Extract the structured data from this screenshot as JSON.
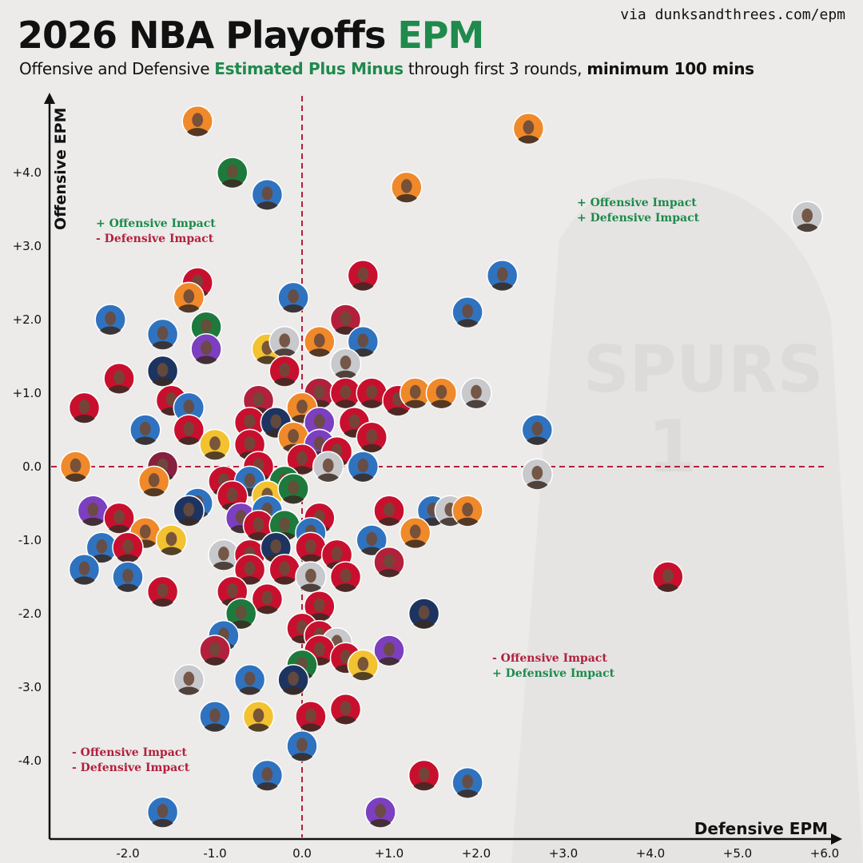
{
  "header": {
    "title_main": "2026 NBA Playoffs",
    "title_accent": "EPM",
    "source": "via dunksandthrees.com/epm",
    "subtitle_pre": "Offensive and Defensive",
    "subtitle_accent": "Estimated Plus Minus",
    "subtitle_mid": "through first 3 rounds,",
    "subtitle_strong": "minimum 100 mins"
  },
  "quadrants": {
    "top_left": {
      "line1": "+ Offensive Impact",
      "line2": "- Defensive Impact"
    },
    "top_right": {
      "line1": "+ Offensive Impact",
      "line2": "+ Defensive Impact"
    },
    "bottom_right": {
      "line1": "- Offensive Impact",
      "line2": "+ Defensive Impact"
    },
    "bottom_left": {
      "line1": "- Offensive Impact",
      "line2": "- Defensive Impact"
    }
  },
  "chart_data": {
    "type": "scatter",
    "xlabel": "Defensive EPM",
    "ylabel": "Offensive EPM",
    "xlim": [
      -2.9,
      6.2
    ],
    "ylim": [
      -5.2,
      5.0
    ],
    "x_ticks": [
      "-2.0",
      "-1.0",
      "0.0",
      "+1.0",
      "+2.0",
      "+3.0",
      "+4.0",
      "+5.0",
      "+6.0"
    ],
    "y_ticks": [
      "+4.0",
      "+3.0",
      "+2.0",
      "+1.0",
      "0.0",
      "-1.0",
      "-2.0",
      "-3.0",
      "-4.0"
    ],
    "x_tick_values": [
      -2,
      -1,
      0,
      1,
      2,
      3,
      4,
      5,
      6
    ],
    "y_tick_values": [
      4,
      3,
      2,
      1,
      0,
      -1,
      -2,
      -3,
      -4
    ],
    "reference_lines": {
      "x": 0,
      "y": 0,
      "style": "dashed"
    },
    "grid": false,
    "marker_style": "player headshot in team-color circle",
    "points": [
      {
        "x": -1.2,
        "y": 4.7,
        "c": "#f0892a"
      },
      {
        "x": 2.6,
        "y": 4.6,
        "c": "#f0892a"
      },
      {
        "x": 5.8,
        "y": 3.4,
        "c": "#c8c9cc"
      },
      {
        "x": -0.8,
        "y": 4.0,
        "c": "#1e7a3c"
      },
      {
        "x": -0.4,
        "y": 3.7,
        "c": "#2f73c0"
      },
      {
        "x": 1.2,
        "y": 3.8,
        "c": "#f0892a"
      },
      {
        "x": 2.3,
        "y": 2.6,
        "c": "#2f73c0"
      },
      {
        "x": 0.7,
        "y": 2.6,
        "c": "#c8102e"
      },
      {
        "x": -1.2,
        "y": 2.5,
        "c": "#c8102e"
      },
      {
        "x": -1.3,
        "y": 2.3,
        "c": "#f0892a"
      },
      {
        "x": -0.1,
        "y": 2.3,
        "c": "#2f73c0"
      },
      {
        "x": 1.9,
        "y": 2.1,
        "c": "#2f73c0"
      },
      {
        "x": -2.2,
        "y": 2.0,
        "c": "#2f73c0"
      },
      {
        "x": -1.1,
        "y": 1.9,
        "c": "#1e7a3c"
      },
      {
        "x": -1.6,
        "y": 1.8,
        "c": "#2f73c0"
      },
      {
        "x": 0.5,
        "y": 2.0,
        "c": "#b3203c"
      },
      {
        "x": 0.7,
        "y": 1.7,
        "c": "#2f73c0"
      },
      {
        "x": -1.1,
        "y": 1.6,
        "c": "#7c3fbf"
      },
      {
        "x": -0.4,
        "y": 1.6,
        "c": "#f2c230"
      },
      {
        "x": -0.2,
        "y": 1.7,
        "c": "#c8c9cc"
      },
      {
        "x": 0.2,
        "y": 1.7,
        "c": "#f0892a"
      },
      {
        "x": -0.2,
        "y": 1.3,
        "c": "#c8102e"
      },
      {
        "x": 0.5,
        "y": 1.4,
        "c": "#c8c9cc"
      },
      {
        "x": -1.6,
        "y": 1.3,
        "c": "#1d3461"
      },
      {
        "x": -2.1,
        "y": 1.2,
        "c": "#c8102e"
      },
      {
        "x": -2.5,
        "y": 0.8,
        "c": "#c8102e"
      },
      {
        "x": -1.5,
        "y": 0.9,
        "c": "#c8102e"
      },
      {
        "x": -0.5,
        "y": 0.9,
        "c": "#b3203c"
      },
      {
        "x": 0.2,
        "y": 1.0,
        "c": "#b3203c"
      },
      {
        "x": 0.5,
        "y": 1.0,
        "c": "#c8102e"
      },
      {
        "x": 0.8,
        "y": 1.0,
        "c": "#c8102e"
      },
      {
        "x": 1.1,
        "y": 0.9,
        "c": "#c8102e"
      },
      {
        "x": 1.3,
        "y": 1.0,
        "c": "#f0892a"
      },
      {
        "x": 1.6,
        "y": 1.0,
        "c": "#f0892a"
      },
      {
        "x": 2.0,
        "y": 1.0,
        "c": "#c8c9cc"
      },
      {
        "x": -1.3,
        "y": 0.8,
        "c": "#2f73c0"
      },
      {
        "x": -0.6,
        "y": 0.6,
        "c": "#c8102e"
      },
      {
        "x": 0.0,
        "y": 0.8,
        "c": "#f0892a"
      },
      {
        "x": 0.2,
        "y": 0.6,
        "c": "#7c3fbf"
      },
      {
        "x": 0.6,
        "y": 0.6,
        "c": "#c8102e"
      },
      {
        "x": -1.8,
        "y": 0.5,
        "c": "#2f73c0"
      },
      {
        "x": -1.3,
        "y": 0.5,
        "c": "#c8102e"
      },
      {
        "x": -0.3,
        "y": 0.6,
        "c": "#1d3461"
      },
      {
        "x": 0.8,
        "y": 0.4,
        "c": "#c8102e"
      },
      {
        "x": 2.7,
        "y": 0.5,
        "c": "#2f73c0"
      },
      {
        "x": -1.0,
        "y": 0.3,
        "c": "#f2c230"
      },
      {
        "x": -0.6,
        "y": 0.3,
        "c": "#c8102e"
      },
      {
        "x": -0.1,
        "y": 0.4,
        "c": "#f0892a"
      },
      {
        "x": 0.2,
        "y": 0.3,
        "c": "#7c3fbf"
      },
      {
        "x": 0.4,
        "y": 0.2,
        "c": "#c8102e"
      },
      {
        "x": -2.6,
        "y": 0.0,
        "c": "#f0892a"
      },
      {
        "x": -1.6,
        "y": 0.0,
        "c": "#86203f"
      },
      {
        "x": -0.5,
        "y": 0.0,
        "c": "#c8102e"
      },
      {
        "x": 0.0,
        "y": 0.1,
        "c": "#c8102e"
      },
      {
        "x": 0.3,
        "y": 0.0,
        "c": "#c8c9cc"
      },
      {
        "x": 0.7,
        "y": 0.0,
        "c": "#2f73c0"
      },
      {
        "x": 2.7,
        "y": -0.1,
        "c": "#c8c9cc"
      },
      {
        "x": -1.7,
        "y": -0.2,
        "c": "#f0892a"
      },
      {
        "x": -0.9,
        "y": -0.2,
        "c": "#c8102e"
      },
      {
        "x": -0.6,
        "y": -0.2,
        "c": "#2f73c0"
      },
      {
        "x": -0.2,
        "y": -0.2,
        "c": "#1e7a3c"
      },
      {
        "x": -1.2,
        "y": -0.5,
        "c": "#2f73c0"
      },
      {
        "x": -0.8,
        "y": -0.4,
        "c": "#c8102e"
      },
      {
        "x": -0.4,
        "y": -0.4,
        "c": "#f2c230"
      },
      {
        "x": -0.1,
        "y": -0.3,
        "c": "#1e7a3c"
      },
      {
        "x": -2.4,
        "y": -0.6,
        "c": "#7c3fbf"
      },
      {
        "x": -2.1,
        "y": -0.7,
        "c": "#c8102e"
      },
      {
        "x": -1.3,
        "y": -0.6,
        "c": "#1d3461"
      },
      {
        "x": -0.7,
        "y": -0.7,
        "c": "#7c3fbf"
      },
      {
        "x": -0.4,
        "y": -0.6,
        "c": "#2f73c0"
      },
      {
        "x": 0.2,
        "y": -0.7,
        "c": "#c8102e"
      },
      {
        "x": 1.0,
        "y": -0.6,
        "c": "#c8102e"
      },
      {
        "x": 1.5,
        "y": -0.6,
        "c": "#2f73c0"
      },
      {
        "x": 1.7,
        "y": -0.6,
        "c": "#c8c9cc"
      },
      {
        "x": 1.9,
        "y": -0.6,
        "c": "#f0892a"
      },
      {
        "x": -1.8,
        "y": -0.9,
        "c": "#f0892a"
      },
      {
        "x": -1.5,
        "y": -1.0,
        "c": "#f2c230"
      },
      {
        "x": -0.5,
        "y": -0.8,
        "c": "#c8102e"
      },
      {
        "x": -0.2,
        "y": -0.8,
        "c": "#1e7a3c"
      },
      {
        "x": 0.1,
        "y": -0.9,
        "c": "#2f73c0"
      },
      {
        "x": 1.3,
        "y": -0.9,
        "c": "#f0892a"
      },
      {
        "x": 0.8,
        "y": -1.0,
        "c": "#2f73c0"
      },
      {
        "x": -2.3,
        "y": -1.1,
        "c": "#2f73c0"
      },
      {
        "x": -2.0,
        "y": -1.1,
        "c": "#c8102e"
      },
      {
        "x": -0.9,
        "y": -1.2,
        "c": "#c8c9cc"
      },
      {
        "x": -0.6,
        "y": -1.2,
        "c": "#c8102e"
      },
      {
        "x": -0.3,
        "y": -1.1,
        "c": "#1d3461"
      },
      {
        "x": 0.1,
        "y": -1.1,
        "c": "#c8102e"
      },
      {
        "x": 0.4,
        "y": -1.2,
        "c": "#c8102e"
      },
      {
        "x": -2.5,
        "y": -1.4,
        "c": "#2f73c0"
      },
      {
        "x": -2.0,
        "y": -1.5,
        "c": "#2f73c0"
      },
      {
        "x": -0.6,
        "y": -1.4,
        "c": "#c8102e"
      },
      {
        "x": -0.2,
        "y": -1.4,
        "c": "#c8102e"
      },
      {
        "x": 0.1,
        "y": -1.5,
        "c": "#c8c9cc"
      },
      {
        "x": 0.5,
        "y": -1.5,
        "c": "#c8102e"
      },
      {
        "x": 1.0,
        "y": -1.3,
        "c": "#b3203c"
      },
      {
        "x": -1.6,
        "y": -1.7,
        "c": "#c8102e"
      },
      {
        "x": -0.8,
        "y": -1.7,
        "c": "#c8102e"
      },
      {
        "x": -0.4,
        "y": -1.8,
        "c": "#c8102e"
      },
      {
        "x": 0.2,
        "y": -1.9,
        "c": "#c8102e"
      },
      {
        "x": 4.2,
        "y": -1.5,
        "c": "#c8102e"
      },
      {
        "x": -0.7,
        "y": -2.0,
        "c": "#1e7a3c"
      },
      {
        "x": 1.4,
        "y": -2.0,
        "c": "#1d3461"
      },
      {
        "x": -0.9,
        "y": -2.3,
        "c": "#2f73c0"
      },
      {
        "x": 0.0,
        "y": -2.2,
        "c": "#c8102e"
      },
      {
        "x": 0.2,
        "y": -2.3,
        "c": "#c8102e"
      },
      {
        "x": -1.0,
        "y": -2.5,
        "c": "#b3203c"
      },
      {
        "x": 0.4,
        "y": -2.4,
        "c": "#c8c9cc"
      },
      {
        "x": 0.2,
        "y": -2.5,
        "c": "#c8102e"
      },
      {
        "x": 1.0,
        "y": -2.5,
        "c": "#7c3fbf"
      },
      {
        "x": 0.0,
        "y": -2.7,
        "c": "#1e7a3c"
      },
      {
        "x": 0.5,
        "y": -2.6,
        "c": "#c8102e"
      },
      {
        "x": 0.7,
        "y": -2.7,
        "c": "#f2c230"
      },
      {
        "x": -1.3,
        "y": -2.9,
        "c": "#c8c9cc"
      },
      {
        "x": -0.6,
        "y": -2.9,
        "c": "#2f73c0"
      },
      {
        "x": -0.1,
        "y": -2.9,
        "c": "#1d3461"
      },
      {
        "x": -1.0,
        "y": -3.4,
        "c": "#2f73c0"
      },
      {
        "x": -0.5,
        "y": -3.4,
        "c": "#f2c230"
      },
      {
        "x": 0.1,
        "y": -3.4,
        "c": "#c8102e"
      },
      {
        "x": 0.5,
        "y": -3.3,
        "c": "#c8102e"
      },
      {
        "x": 0.0,
        "y": -3.8,
        "c": "#2f73c0"
      },
      {
        "x": -0.4,
        "y": -4.2,
        "c": "#2f73c0"
      },
      {
        "x": 1.4,
        "y": -4.2,
        "c": "#c8102e"
      },
      {
        "x": 1.9,
        "y": -4.3,
        "c": "#2f73c0"
      },
      {
        "x": -1.6,
        "y": -4.7,
        "c": "#2f73c0"
      },
      {
        "x": 0.9,
        "y": -4.7,
        "c": "#7c3fbf"
      }
    ]
  }
}
